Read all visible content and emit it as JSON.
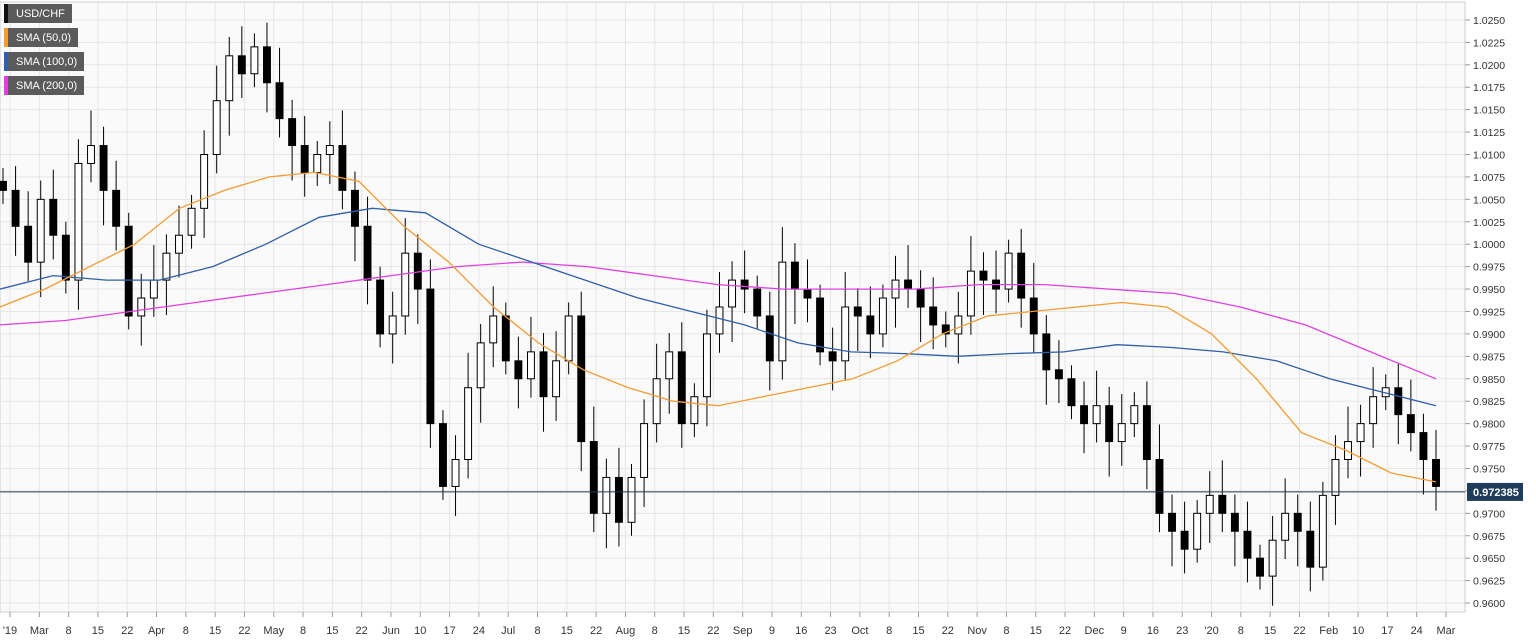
{
  "legend": {
    "items": [
      {
        "label": "USD/CHF",
        "color": "#111111"
      },
      {
        "label": "SMA (50,0)",
        "color": "#f39c33"
      },
      {
        "label": "SMA (100,0)",
        "color": "#2f5fa7"
      },
      {
        "label": "SMA (200,0)",
        "color": "#e040e0"
      }
    ]
  },
  "chart_data": {
    "type": "candlestick",
    "title": "",
    "ylim": [
      0.959,
      1.027
    ],
    "y_ticks": [
      "1.0250",
      "1.0225",
      "1.0200",
      "1.0175",
      "1.0150",
      "1.0125",
      "1.0100",
      "1.0075",
      "1.0050",
      "1.0025",
      "1.0000",
      "0.9975",
      "0.9950",
      "0.9925",
      "0.9900",
      "0.9875",
      "0.9850",
      "0.9825",
      "0.9800",
      "0.9775",
      "0.9750",
      "0.9725",
      "0.9700",
      "0.9675",
      "0.9650",
      "0.9625",
      "0.9600"
    ],
    "x_ticks": [
      "'19",
      "Mar",
      "8",
      "15",
      "22",
      "Apr",
      "8",
      "15",
      "22",
      "May",
      "8",
      "15",
      "22",
      "Jun",
      "10",
      "17",
      "24",
      "Jul",
      "8",
      "15",
      "22",
      "Aug",
      "8",
      "15",
      "22",
      "Sep",
      "9",
      "16",
      "23",
      "Oct",
      "8",
      "15",
      "22",
      "Nov",
      "8",
      "15",
      "22",
      "Dec",
      "9",
      "16",
      "23",
      "'20",
      "8",
      "15",
      "22",
      "Feb",
      "10",
      "17",
      "24",
      "Mar"
    ],
    "current_price": "0.972385",
    "grid": true,
    "colors": {
      "up": "#ffffff",
      "down": "#000000",
      "price_line": "#1f3c5a",
      "grid": "#e6e6e6"
    },
    "close_series": [
      1.006,
      1.002,
      0.998,
      1.005,
      1.001,
      0.996,
      1.009,
      1.011,
      1.006,
      1.002,
      0.992,
      0.994,
      0.996,
      0.999,
      1.001,
      1.004,
      1.01,
      1.016,
      1.021,
      1.019,
      1.022,
      1.018,
      1.014,
      1.011,
      1.008,
      1.01,
      1.011,
      1.006,
      1.002,
      0.996,
      0.99,
      0.992,
      0.999,
      0.995,
      0.98,
      0.973,
      0.976,
      0.984,
      0.989,
      0.992,
      0.987,
      0.985,
      0.988,
      0.983,
      0.987,
      0.992,
      0.978,
      0.97,
      0.974,
      0.969,
      0.974,
      0.98,
      0.985,
      0.988,
      0.98,
      0.983,
      0.99,
      0.993,
      0.996,
      0.995,
      0.992,
      0.987,
      0.998,
      0.995,
      0.994,
      0.988,
      0.987,
      0.993,
      0.992,
      0.99,
      0.994,
      0.996,
      0.995,
      0.993,
      0.991,
      0.99,
      0.992,
      0.997,
      0.996,
      0.995,
      0.999,
      0.994,
      0.99,
      0.986,
      0.985,
      0.982,
      0.98,
      0.982,
      0.978,
      0.98,
      0.982,
      0.976,
      0.97,
      0.968,
      0.966,
      0.97,
      0.972,
      0.97,
      0.968,
      0.965,
      0.963,
      0.967,
      0.97,
      0.968,
      0.964,
      0.972,
      0.976,
      0.978,
      0.98,
      0.983,
      0.984,
      0.981,
      0.979,
      0.976,
      0.973
    ]
  },
  "sma_samples": {
    "sma50": [
      0.993,
      0.995,
      0.9975,
      1.0,
      1.004,
      1.006,
      1.0075,
      1.008,
      1.007,
      1.002,
      0.998,
      0.993,
      0.989,
      0.986,
      0.984,
      0.9825,
      0.982,
      0.983,
      0.984,
      0.985,
      0.987,
      0.99,
      0.992,
      0.9925,
      0.993,
      0.9935,
      0.993,
      0.99,
      0.985,
      0.979,
      0.977,
      0.9745,
      0.9735
    ],
    "sma100": [
      0.995,
      0.9965,
      0.996,
      0.996,
      0.9975,
      1.0,
      1.003,
      1.004,
      1.0035,
      1.0,
      0.998,
      0.996,
      0.994,
      0.9925,
      0.991,
      0.989,
      0.988,
      0.9878,
      0.9875,
      0.9878,
      0.988,
      0.9888,
      0.9885,
      0.988,
      0.987,
      0.985,
      0.9835,
      0.982
    ],
    "sma200": [
      0.991,
      0.9915,
      0.9925,
      0.9935,
      0.9945,
      0.9955,
      0.9965,
      0.9975,
      0.998,
      0.9975,
      0.9965,
      0.9955,
      0.995,
      0.995,
      0.995,
      0.9955,
      0.9955,
      0.995,
      0.9945,
      0.993,
      0.991,
      0.988,
      0.985
    ]
  }
}
